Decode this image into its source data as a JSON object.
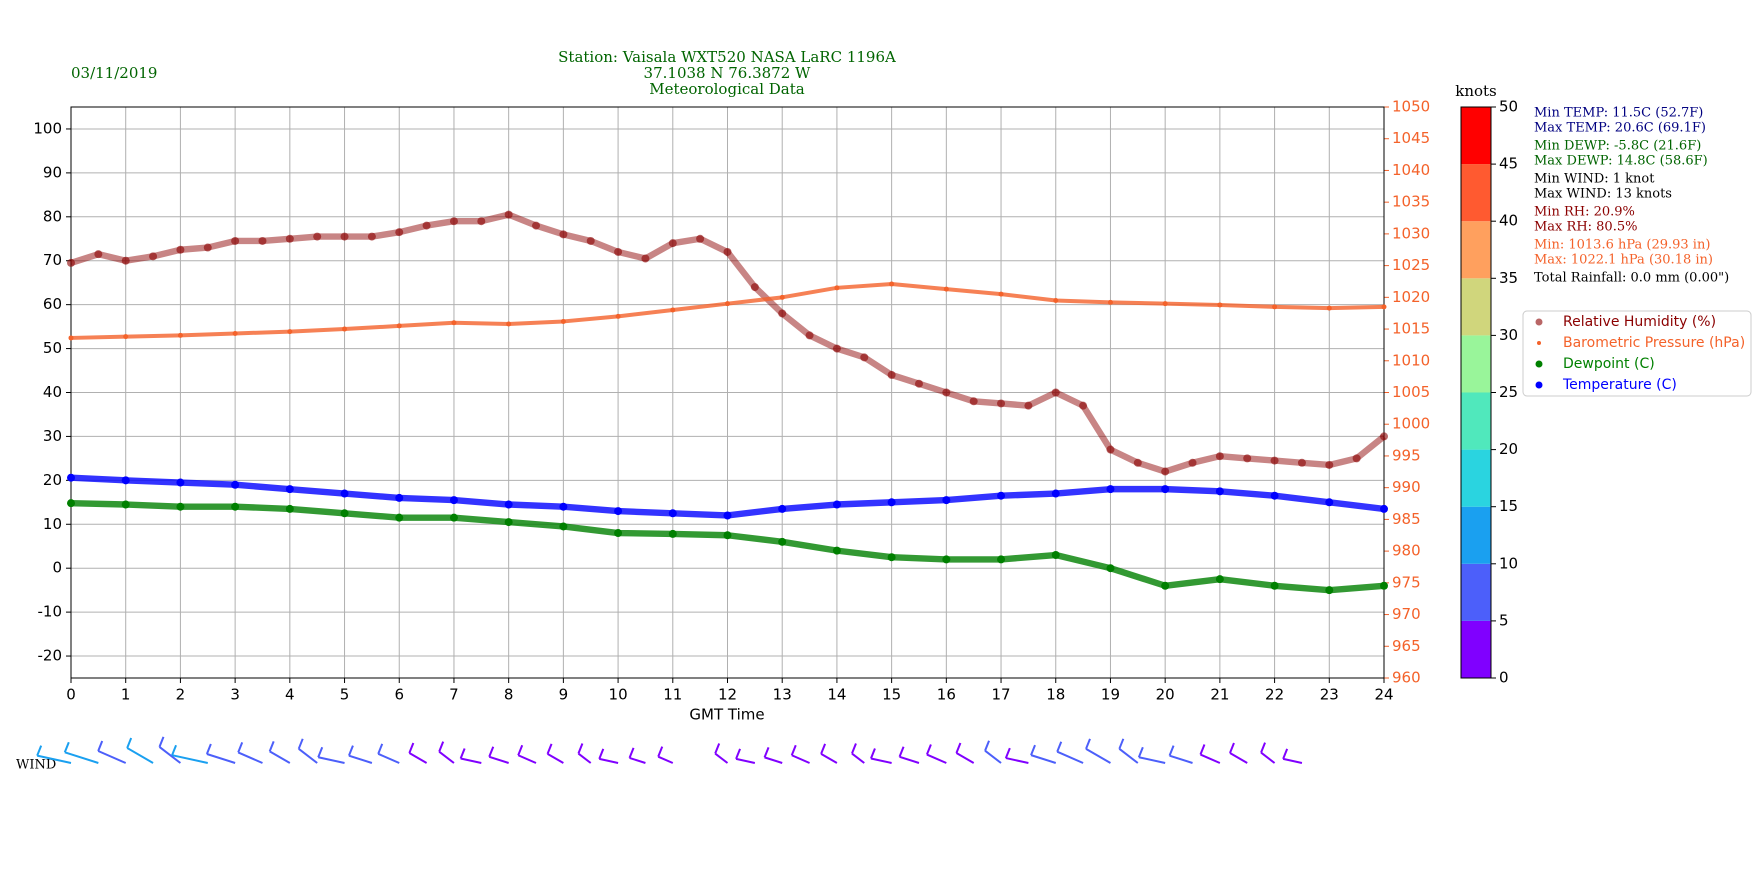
{
  "chart_data": {
    "type": "scatter",
    "title": [
      "Station:  Vaisala WXT520  NASA LaRC 1196A",
      "37.1038 N 76.3872 W",
      "Meteorological Data"
    ],
    "date": "03/11/2019",
    "xlabel": "GMT Time",
    "xlim": [
      0,
      24
    ],
    "xticks": [
      0,
      1,
      2,
      3,
      4,
      5,
      6,
      7,
      8,
      9,
      10,
      11,
      12,
      13,
      14,
      15,
      16,
      17,
      18,
      19,
      20,
      21,
      22,
      23,
      24
    ],
    "ylim": [
      -25,
      105
    ],
    "yticks": [
      -20,
      -10,
      0,
      10,
      20,
      30,
      40,
      50,
      60,
      70,
      80,
      90,
      100
    ],
    "y2lim": [
      960,
      1050
    ],
    "y2ticks": [
      960,
      965,
      970,
      975,
      980,
      985,
      990,
      995,
      1000,
      1005,
      1010,
      1015,
      1020,
      1025,
      1030,
      1035,
      1040,
      1045,
      1050
    ],
    "y2color": "#f4622a",
    "grid": true,
    "legend": "right",
    "series": [
      {
        "name": "Relative Humidity (%)",
        "color": "#8b0000",
        "x": [
          0,
          0.5,
          1,
          1.5,
          2,
          2.5,
          3,
          3.5,
          4,
          4.5,
          5,
          5.5,
          6,
          6.5,
          7,
          7.5,
          8,
          8.5,
          9,
          9.5,
          10,
          10.5,
          11,
          11.5,
          12,
          12.5,
          13,
          13.5,
          14,
          14.5,
          15,
          15.5,
          16,
          16.5,
          17,
          17.5,
          18,
          18.5,
          19,
          19.5,
          20,
          20.5,
          21,
          21.5,
          22,
          22.5,
          23,
          23.5,
          24
        ],
        "values": [
          69.5,
          71.5,
          70,
          71,
          72.5,
          73,
          74.5,
          74.5,
          75,
          75.5,
          75.5,
          75.5,
          76.5,
          78,
          79,
          79,
          80.5,
          78,
          76,
          74.5,
          72,
          70.5,
          74,
          75,
          72,
          64,
          58,
          53,
          50,
          48,
          44,
          42,
          40,
          38,
          37.5,
          37,
          40,
          37,
          27,
          24,
          22,
          24,
          25.5,
          25,
          24.5,
          24,
          23.5,
          25,
          30
        ]
      },
      {
        "name": "Barometric Pressure (hPa)",
        "color": "#f4622a",
        "axis": "y2",
        "x": [
          0,
          1,
          2,
          3,
          4,
          5,
          6,
          7,
          8,
          9,
          10,
          11,
          12,
          13,
          14,
          15,
          16,
          17,
          18,
          19,
          20,
          21,
          22,
          23,
          24
        ],
        "values": [
          1013.6,
          1013.8,
          1014,
          1014.3,
          1014.6,
          1015,
          1015.5,
          1016,
          1015.8,
          1016.2,
          1017,
          1018,
          1019,
          1020,
          1021.5,
          1022.1,
          1021.3,
          1020.5,
          1019.5,
          1019.2,
          1019,
          1018.8,
          1018.5,
          1018.3,
          1018.5
        ]
      },
      {
        "name": "Dewpoint (C)",
        "color": "#008000",
        "x": [
          0,
          1,
          2,
          3,
          4,
          5,
          6,
          7,
          8,
          9,
          10,
          11,
          12,
          13,
          14,
          15,
          16,
          17,
          18,
          19,
          20,
          21,
          22,
          23,
          24
        ],
        "values": [
          14.8,
          14.5,
          14,
          14,
          13.5,
          12.5,
          11.5,
          11.5,
          10.5,
          9.5,
          8,
          7.8,
          7.5,
          6,
          4,
          2.5,
          2,
          2,
          3,
          0,
          -4,
          -2.5,
          -4,
          -5,
          -4
        ]
      },
      {
        "name": "Temperature (C)",
        "color": "#0000ff",
        "x": [
          0,
          1,
          2,
          3,
          4,
          5,
          6,
          7,
          8,
          9,
          10,
          11,
          12,
          13,
          14,
          15,
          16,
          17,
          18,
          19,
          20,
          21,
          22,
          23,
          24
        ],
        "values": [
          20.6,
          20,
          19.5,
          19,
          18,
          17,
          16,
          15.5,
          14.5,
          14,
          13,
          12.5,
          12,
          13.5,
          14.5,
          15,
          15.5,
          16.5,
          17,
          18,
          18,
          17.5,
          16.5,
          15,
          13.5
        ]
      }
    ],
    "wind": {
      "name": "WIND",
      "x": [
        0,
        0.5,
        1,
        1.5,
        2,
        2.5,
        3,
        3.5,
        4,
        4.5,
        5,
        5.5,
        6,
        6.5,
        7,
        7.5,
        8,
        8.5,
        9,
        9.5,
        10,
        10.5,
        11,
        11.5,
        12,
        12.5,
        13,
        13.5,
        14,
        14.5,
        15,
        15.5,
        16,
        16.5,
        17,
        17.5,
        18,
        18.5,
        19,
        19.5,
        20,
        20.5,
        21,
        21.5,
        22,
        22.5
      ],
      "values": [
        11,
        12,
        10,
        11,
        10,
        12,
        9,
        8,
        7,
        8,
        7,
        6,
        6,
        5,
        5,
        4,
        4,
        4,
        4,
        3,
        3,
        2,
        2,
        null,
        3,
        3,
        3,
        4,
        4,
        3,
        4,
        4,
        5,
        5,
        6,
        5,
        7,
        9,
        10,
        8,
        7,
        6,
        5,
        5,
        4,
        3
      ]
    },
    "colorbar": {
      "label": "knots",
      "ticks": [
        0,
        5,
        10,
        15,
        20,
        25,
        30,
        35,
        40,
        45,
        50
      ],
      "colors": [
        "#8000ff",
        "#4c5ffa",
        "#1aa0f0",
        "#2ad4e0",
        "#50e8bc",
        "#99f59a",
        "#d0d67c",
        "#ffa05e",
        "#ff5a30",
        "#ff0000"
      ]
    },
    "stats": [
      {
        "text": "Min TEMP: 11.5C (52.7F)",
        "color": "#000080"
      },
      {
        "text": "Max TEMP: 20.6C (69.1F)",
        "color": "#000080"
      },
      {
        "text": "Min DEWP: -5.8C (21.6F)",
        "color": "#006400"
      },
      {
        "text": "Max DEWP: 14.8C (58.6F)",
        "color": "#006400"
      },
      {
        "text": "Min WIND: 1 knot",
        "color": "#000000"
      },
      {
        "text": "Max WIND: 13 knots",
        "color": "#000000"
      },
      {
        "text": "Min RH: 20.9%",
        "color": "#8b0000"
      },
      {
        "text": "Max RH: 80.5%",
        "color": "#8b0000"
      },
      {
        "text": "Min: 1013.6 hPa (29.93 in)",
        "color": "#f4622a"
      },
      {
        "text": "Max: 1022.1 hPa (30.18 in)",
        "color": "#f4622a"
      },
      {
        "text": "Total Rainfall: 0.0 mm (0.00\")",
        "color": "#000000"
      }
    ]
  }
}
